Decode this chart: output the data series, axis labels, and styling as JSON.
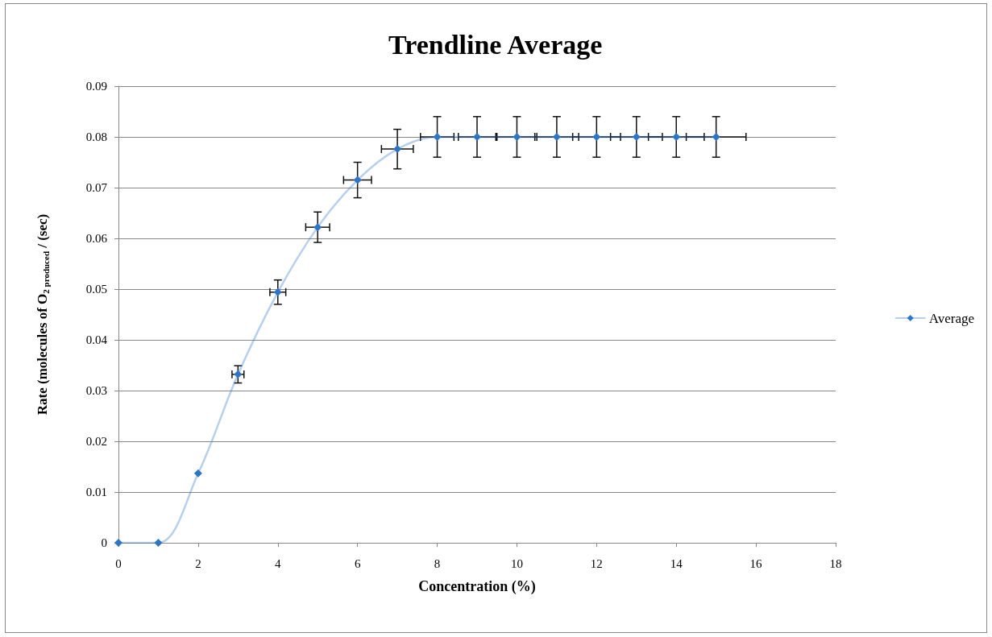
{
  "chart_data": {
    "type": "line",
    "title": "Trendline Average",
    "xlabel": "Concentration (%)",
    "ylabel": "Rate (molecules of O$_{2 produced}$ / (sec)",
    "x": [
      0,
      1,
      2,
      3,
      4,
      5,
      6,
      7,
      8,
      9,
      10,
      11,
      12,
      13,
      14,
      15
    ],
    "series": [
      {
        "name": "Average",
        "color": "#2e75c5",
        "values": [
          0,
          0,
          0.0137,
          0.0332,
          0.0494,
          0.0622,
          0.0715,
          0.0776,
          0.08,
          0.08,
          0.08,
          0.08,
          0.08,
          0.08,
          0.08,
          0.08
        ],
        "errors": [
          0,
          0,
          null,
          0.0017,
          0.0024,
          0.003,
          0.0035,
          0.0039,
          0.004,
          0.004,
          0.004,
          0.004,
          0.004,
          0.004,
          0.004,
          0.004
        ],
        "xerrors": [
          0,
          0.05,
          null,
          0.15,
          0.2,
          0.3,
          0.35,
          0.4,
          0.42,
          0.47,
          0.5,
          0.55,
          0.6,
          0.65,
          0.7,
          0.75
        ]
      }
    ],
    "xlim": [
      0,
      18
    ],
    "xticks": [
      0,
      2,
      4,
      6,
      8,
      10,
      12,
      14,
      16,
      18
    ],
    "ylim": [
      0,
      0.09
    ],
    "yticks": [
      0,
      0.01,
      0.02,
      0.03,
      0.04,
      0.05,
      0.06,
      0.07,
      0.08,
      0.09
    ],
    "grid": "y",
    "legend": "right",
    "marker": "diamond",
    "line_style": "solid"
  }
}
